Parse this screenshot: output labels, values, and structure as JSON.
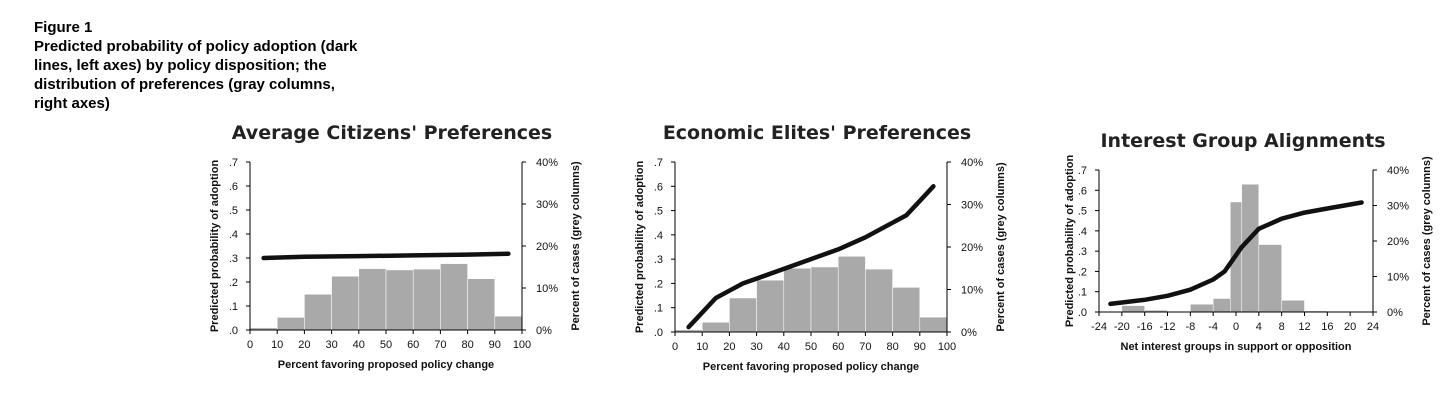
{
  "figure": {
    "label": "Figure 1",
    "caption_lines": [
      "Predicted probability of policy adoption (dark",
      "lines, left axes) by policy disposition; the",
      "distribution of preferences (gray columns,",
      "right axes)"
    ]
  },
  "colors": {
    "bars": "#a9a9a9",
    "line": "#111111",
    "axis": "#000000"
  },
  "chart_data": [
    {
      "type": "bar",
      "title": "Average Citizens' Preferences",
      "xlabel": "Percent favoring proposed policy change",
      "ylabel": "Predicted probability of adoption",
      "ylabel_right": "Percent of cases (grey columns)",
      "xlim": [
        0,
        100
      ],
      "ylim": [
        0,
        0.7
      ],
      "ylim_right": [
        0,
        40
      ],
      "x_ticks": [
        0,
        10,
        20,
        30,
        40,
        50,
        60,
        70,
        80,
        90,
        100
      ],
      "x_tick_labels": [
        "0",
        "10",
        "20",
        "30",
        "40",
        "50",
        "60",
        "70",
        "80",
        "90",
        "100"
      ],
      "y_ticks": [
        0,
        0.1,
        0.2,
        0.3,
        0.4,
        0.5,
        0.6,
        0.7
      ],
      "y_tick_labels": [
        ".0",
        ".1",
        ".2",
        ".3",
        ".4",
        ".5",
        ".6",
        ".7"
      ],
      "y2_ticks": [
        0,
        10,
        20,
        30,
        40
      ],
      "y2_tick_labels": [
        "0%",
        "10%",
        "20%",
        "30%",
        "40%"
      ],
      "bars": {
        "edges": [
          0,
          10,
          20,
          30,
          40,
          50,
          60,
          70,
          80,
          90,
          100
        ],
        "values": [
          0.5,
          3,
          8.5,
          12.8,
          14.6,
          14.3,
          14.5,
          15.8,
          12.2,
          3.3
        ]
      },
      "line": {
        "x": [
          5,
          20,
          40,
          60,
          80,
          95
        ],
        "y": [
          0.3,
          0.305,
          0.308,
          0.311,
          0.314,
          0.318
        ]
      },
      "grid": false
    },
    {
      "type": "bar",
      "title": "Economic Elites' Preferences",
      "xlabel": "Percent favoring proposed policy change",
      "ylabel": "Predicted probability of adoption",
      "ylabel_right": "Percent of cases (grey columns)",
      "xlim": [
        0,
        100
      ],
      "ylim": [
        0,
        0.7
      ],
      "ylim_right": [
        0,
        40
      ],
      "x_ticks": [
        0,
        10,
        20,
        30,
        40,
        50,
        60,
        70,
        80,
        90,
        100
      ],
      "x_tick_labels": [
        "0",
        "10",
        "20",
        "30",
        "40",
        "50",
        "60",
        "70",
        "80",
        "90",
        "100"
      ],
      "y_ticks": [
        0,
        0.1,
        0.2,
        0.3,
        0.4,
        0.5,
        0.6,
        0.7
      ],
      "y_tick_labels": [
        ".0",
        ".1",
        ".2",
        ".3",
        ".4",
        ".5",
        ".6",
        ".7"
      ],
      "y2_ticks": [
        0,
        10,
        20,
        30,
        40
      ],
      "y2_tick_labels": [
        "0%",
        "10%",
        "20%",
        "30%",
        "40%"
      ],
      "bars": {
        "edges": [
          0,
          10,
          20,
          30,
          40,
          50,
          60,
          70,
          80,
          90,
          100
        ],
        "values": [
          0.5,
          2.3,
          8,
          12.2,
          15,
          15.3,
          17.8,
          14.8,
          10.5,
          3.5
        ]
      },
      "line": {
        "x": [
          5,
          10,
          15,
          20,
          25,
          30,
          40,
          50,
          60,
          70,
          80,
          85,
          90,
          95
        ],
        "y": [
          0.02,
          0.08,
          0.14,
          0.17,
          0.2,
          0.22,
          0.26,
          0.3,
          0.34,
          0.39,
          0.45,
          0.48,
          0.54,
          0.6
        ]
      },
      "grid": false
    },
    {
      "type": "bar",
      "title": "Interest Group Alignments",
      "xlabel": "Net interest groups in support or opposition",
      "ylabel": "Predicted probability of adoption",
      "ylabel_right": "Percent of cases (grey columns)",
      "xlim": [
        -24,
        24
      ],
      "ylim": [
        0,
        0.7
      ],
      "ylim_right": [
        0,
        40
      ],
      "x_ticks": [
        -24,
        -20,
        -16,
        -12,
        -8,
        -4,
        0,
        4,
        8,
        12,
        16,
        20,
        24
      ],
      "x_tick_labels": [
        "-24",
        "-20",
        "-16",
        "-12",
        "-8",
        "-4",
        "0",
        "4",
        "8",
        "12",
        "16",
        "20",
        "24"
      ],
      "y_ticks": [
        0,
        0.1,
        0.2,
        0.3,
        0.4,
        0.5,
        0.6,
        0.7
      ],
      "y_tick_labels": [
        ".0",
        ".1",
        ".2",
        ".3",
        ".4",
        ".5",
        ".6",
        ".7"
      ],
      "y2_ticks": [
        0,
        10,
        20,
        30,
        40
      ],
      "y2_tick_labels": [
        "0%",
        "10%",
        "20%",
        "30%",
        "40%"
      ],
      "bars": {
        "edges": [
          -24,
          -20,
          -16,
          -12,
          -8,
          -4,
          -1,
          1,
          4,
          8,
          12,
          16,
          20,
          24
        ],
        "values": [
          0,
          1.8,
          0.5,
          0,
          2.2,
          3.8,
          31,
          36,
          19,
          3.3,
          0.3,
          0.2,
          0.2
        ]
      },
      "line": {
        "x": [
          -22,
          -16,
          -12,
          -8,
          -4,
          -2,
          0,
          1,
          4,
          8,
          12,
          16,
          22
        ],
        "y": [
          0.04,
          0.06,
          0.08,
          0.11,
          0.16,
          0.2,
          0.28,
          0.32,
          0.41,
          0.46,
          0.49,
          0.51,
          0.54
        ]
      },
      "grid": false
    }
  ]
}
